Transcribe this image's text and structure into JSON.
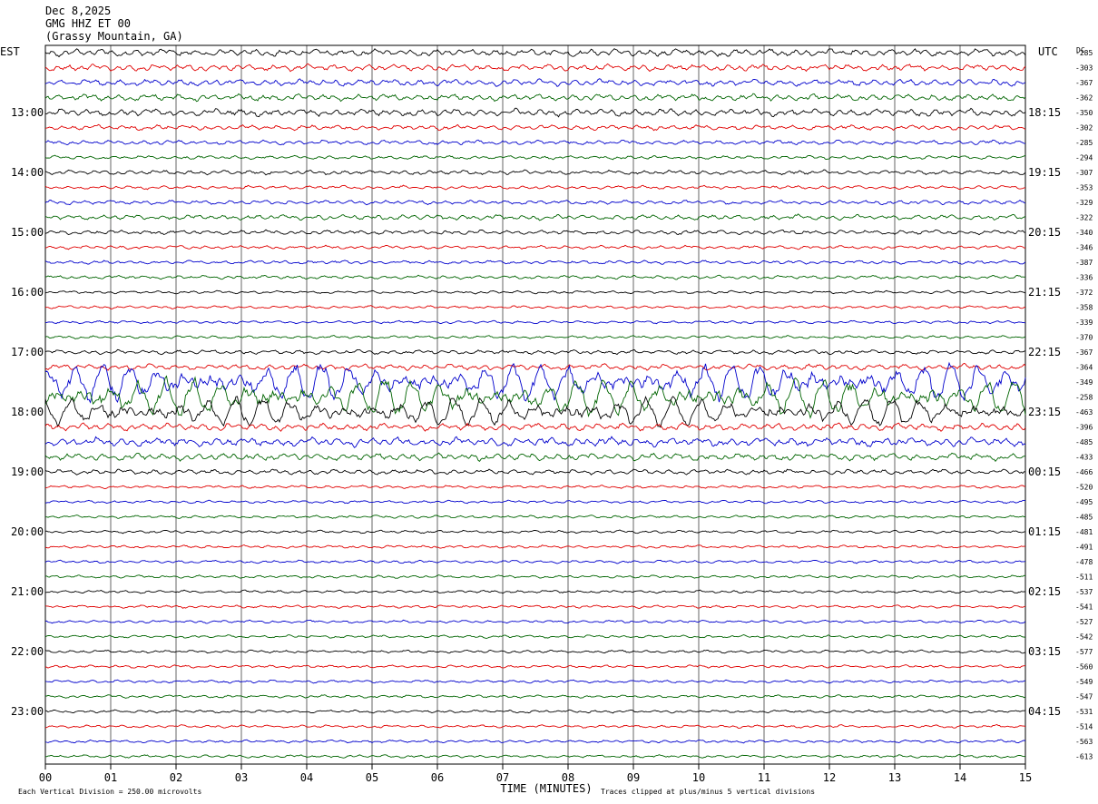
{
  "header": {
    "date": "Dec 8,2025",
    "station": "GMG HHZ ET 00",
    "location": "(Grassy Mountain, GA)"
  },
  "footer": {
    "scale_note": "Each Vertical Division =  250.00 microvolts",
    "clip_note": "Traces clipped at plus/minus 5 vertical divisions"
  },
  "chart_data": {
    "type": "line",
    "title": "",
    "left_axis_label": "EST",
    "right_axis_label": "UTC",
    "dc_label": "DC",
    "xlabel": "TIME (MINUTES)",
    "x_ticks": [
      "00",
      "01",
      "02",
      "03",
      "04",
      "05",
      "06",
      "07",
      "08",
      "09",
      "10",
      "11",
      "12",
      "13",
      "14",
      "15"
    ],
    "xlim": [
      0,
      15
    ],
    "grid": "vertical lines at each minute",
    "left_hour_labels": [
      "13:00",
      "14:00",
      "15:00",
      "16:00",
      "17:00",
      "18:00",
      "19:00",
      "20:00",
      "21:00",
      "22:00",
      "23:00"
    ],
    "right_hour_labels": [
      "18:15",
      "19:15",
      "20:15",
      "21:15",
      "22:15",
      "23:15",
      "00:15",
      "01:15",
      "02:15",
      "03:15",
      "04:15"
    ],
    "trace_colors": [
      "#000000",
      "#e00000",
      "#0000cc",
      "#006400"
    ],
    "dc_offsets": [
      -285,
      -303,
      -367,
      -362,
      -350,
      -302,
      -285,
      -294,
      -307,
      -353,
      -329,
      -322,
      -340,
      -346,
      -387,
      -336,
      -372,
      -358,
      -339,
      -370,
      -367,
      -364,
      -349,
      -258,
      -463,
      -396,
      -485,
      -433,
      -466,
      -520,
      -495,
      -485,
      -481,
      -491,
      -478,
      -511,
      -537,
      -541,
      -527,
      -542,
      -577,
      -560,
      -549,
      -547,
      -531,
      -514,
      -563,
      -613
    ],
    "trace_amplitude_divisions": [
      1.0,
      0.9,
      0.9,
      0.9,
      1.0,
      0.7,
      0.6,
      0.5,
      0.6,
      0.5,
      0.6,
      0.7,
      0.6,
      0.5,
      0.5,
      0.5,
      0.4,
      0.4,
      0.4,
      0.4,
      0.6,
      0.8,
      4.5,
      4.5,
      3.5,
      1.0,
      1.2,
      1.0,
      0.7,
      0.4,
      0.4,
      0.4,
      0.4,
      0.4,
      0.4,
      0.4,
      0.4,
      0.4,
      0.4,
      0.4,
      0.4,
      0.4,
      0.4,
      0.4,
      0.4,
      0.4,
      0.4,
      0.4
    ]
  }
}
